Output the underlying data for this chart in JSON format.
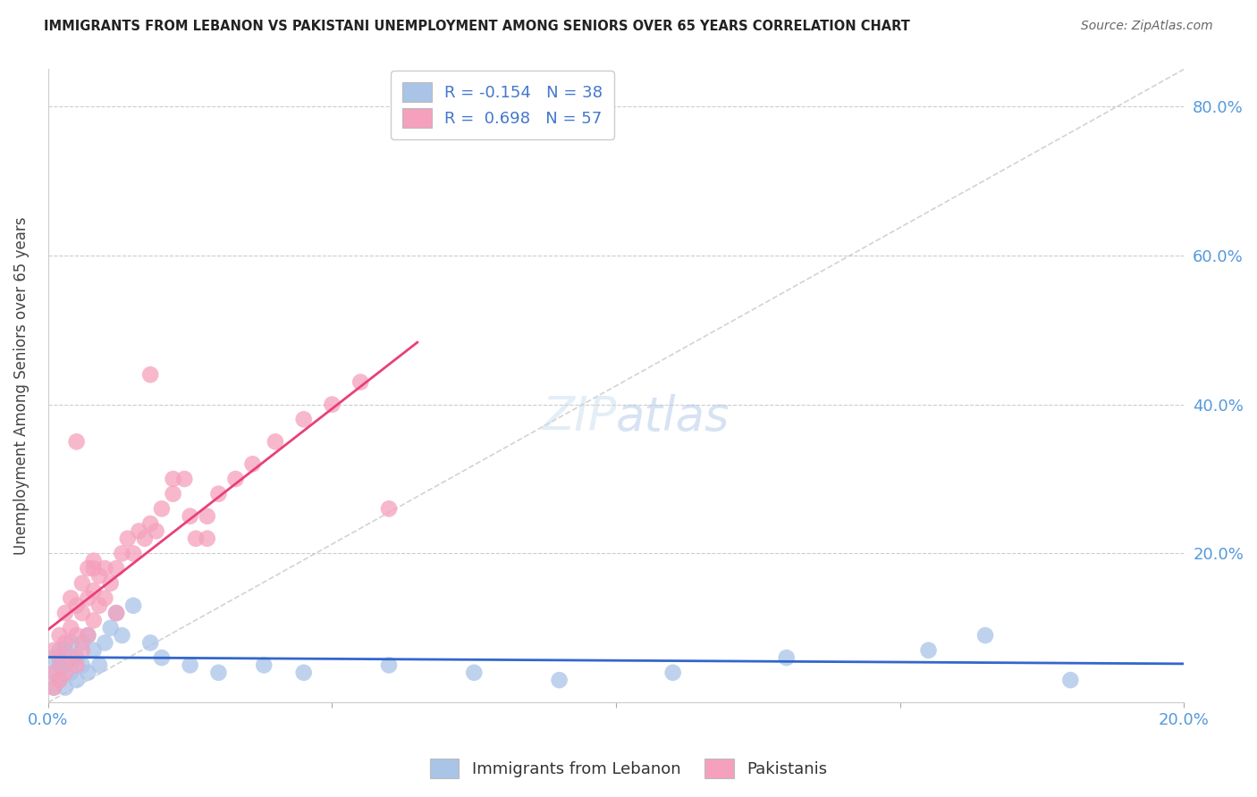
{
  "title": "IMMIGRANTS FROM LEBANON VS PAKISTANI UNEMPLOYMENT AMONG SENIORS OVER 65 YEARS CORRELATION CHART",
  "source": "Source: ZipAtlas.com",
  "ylabel": "Unemployment Among Seniors over 65 years",
  "legend_entry1": "R = -0.154   N = 38",
  "legend_entry2": "R =  0.698   N = 57",
  "legend_label1": "Immigrants from Lebanon",
  "legend_label2": "Pakistanis",
  "blue_color": "#aac4e8",
  "pink_color": "#f5a0bc",
  "blue_line_color": "#3366cc",
  "pink_line_color": "#e8407a",
  "diag_line_color": "#c8c8c8",
  "xlim": [
    0.0,
    0.2
  ],
  "ylim": [
    0.0,
    0.85
  ],
  "background_color": "#ffffff",
  "grid_color": "#cccccc",
  "lebanon_x": [
    0.001,
    0.001,
    0.001,
    0.002,
    0.002,
    0.002,
    0.003,
    0.003,
    0.003,
    0.004,
    0.004,
    0.005,
    0.005,
    0.006,
    0.006,
    0.007,
    0.007,
    0.008,
    0.009,
    0.01,
    0.011,
    0.012,
    0.013,
    0.015,
    0.018,
    0.02,
    0.025,
    0.03,
    0.038,
    0.045,
    0.06,
    0.075,
    0.09,
    0.11,
    0.13,
    0.155,
    0.165,
    0.18
  ],
  "lebanon_y": [
    0.02,
    0.04,
    0.06,
    0.03,
    0.05,
    0.07,
    0.02,
    0.05,
    0.07,
    0.04,
    0.08,
    0.03,
    0.06,
    0.05,
    0.08,
    0.04,
    0.09,
    0.07,
    0.05,
    0.08,
    0.1,
    0.12,
    0.09,
    0.13,
    0.08,
    0.06,
    0.05,
    0.04,
    0.05,
    0.04,
    0.05,
    0.04,
    0.03,
    0.04,
    0.06,
    0.07,
    0.09,
    0.03
  ],
  "pakistani_x": [
    0.001,
    0.001,
    0.001,
    0.002,
    0.002,
    0.002,
    0.003,
    0.003,
    0.003,
    0.004,
    0.004,
    0.004,
    0.005,
    0.005,
    0.005,
    0.006,
    0.006,
    0.006,
    0.007,
    0.007,
    0.007,
    0.008,
    0.008,
    0.008,
    0.009,
    0.009,
    0.01,
    0.01,
    0.011,
    0.012,
    0.013,
    0.014,
    0.015,
    0.016,
    0.017,
    0.018,
    0.019,
    0.02,
    0.022,
    0.024,
    0.026,
    0.028,
    0.03,
    0.033,
    0.036,
    0.04,
    0.045,
    0.05,
    0.055,
    0.06,
    0.018,
    0.022,
    0.025,
    0.028,
    0.005,
    0.008,
    0.012
  ],
  "pakistani_y": [
    0.02,
    0.04,
    0.07,
    0.03,
    0.06,
    0.09,
    0.04,
    0.08,
    0.12,
    0.06,
    0.1,
    0.14,
    0.05,
    0.09,
    0.13,
    0.07,
    0.12,
    0.16,
    0.09,
    0.14,
    0.18,
    0.11,
    0.15,
    0.19,
    0.13,
    0.17,
    0.14,
    0.18,
    0.16,
    0.18,
    0.2,
    0.22,
    0.2,
    0.23,
    0.22,
    0.24,
    0.23,
    0.26,
    0.28,
    0.3,
    0.22,
    0.25,
    0.28,
    0.3,
    0.32,
    0.35,
    0.38,
    0.4,
    0.43,
    0.26,
    0.44,
    0.3,
    0.25,
    0.22,
    0.35,
    0.18,
    0.12
  ]
}
